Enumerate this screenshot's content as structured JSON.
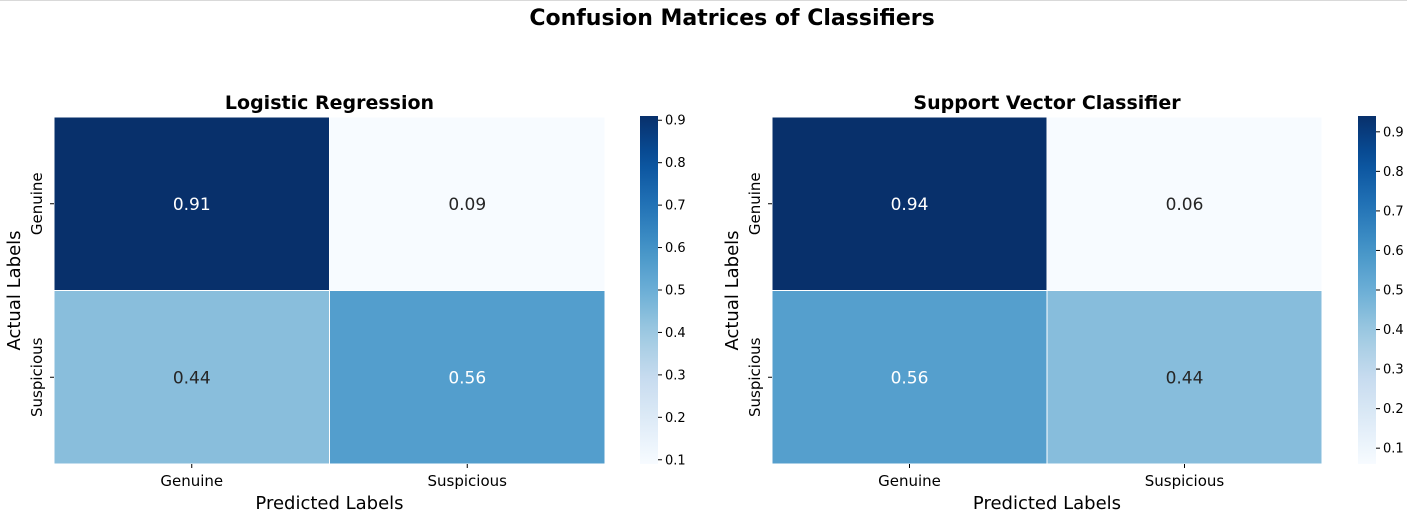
{
  "suptitle": "Confusion Matrices of Classifiers",
  "chart_data": [
    {
      "type": "heatmap",
      "title": "Logistic Regression",
      "xlabel": "Predicted Labels",
      "ylabel": "Actual Labels",
      "x_categories": [
        "Genuine",
        "Suspicious"
      ],
      "y_categories": [
        "Genuine",
        "Suspicious"
      ],
      "values": [
        [
          0.91,
          0.09
        ],
        [
          0.44,
          0.56
        ]
      ],
      "colormap": "Blues",
      "colorbar": {
        "min": 0.09,
        "max": 0.91,
        "ticks": [
          "0.1",
          "0.2",
          "0.3",
          "0.4",
          "0.5",
          "0.6",
          "0.7",
          "0.8",
          "0.9"
        ]
      }
    },
    {
      "type": "heatmap",
      "title": "Support Vector Classifier",
      "xlabel": "Predicted Labels",
      "ylabel": "Actual Labels",
      "x_categories": [
        "Genuine",
        "Suspicious"
      ],
      "y_categories": [
        "Genuine",
        "Suspicious"
      ],
      "values": [
        [
          0.94,
          0.06
        ],
        [
          0.56,
          0.44
        ]
      ],
      "colormap": "Blues",
      "colorbar": {
        "min": 0.06,
        "max": 0.94,
        "ticks": [
          "0.1",
          "0.2",
          "0.3",
          "0.4",
          "0.5",
          "0.6",
          "0.7",
          "0.8",
          "0.9"
        ]
      }
    }
  ]
}
